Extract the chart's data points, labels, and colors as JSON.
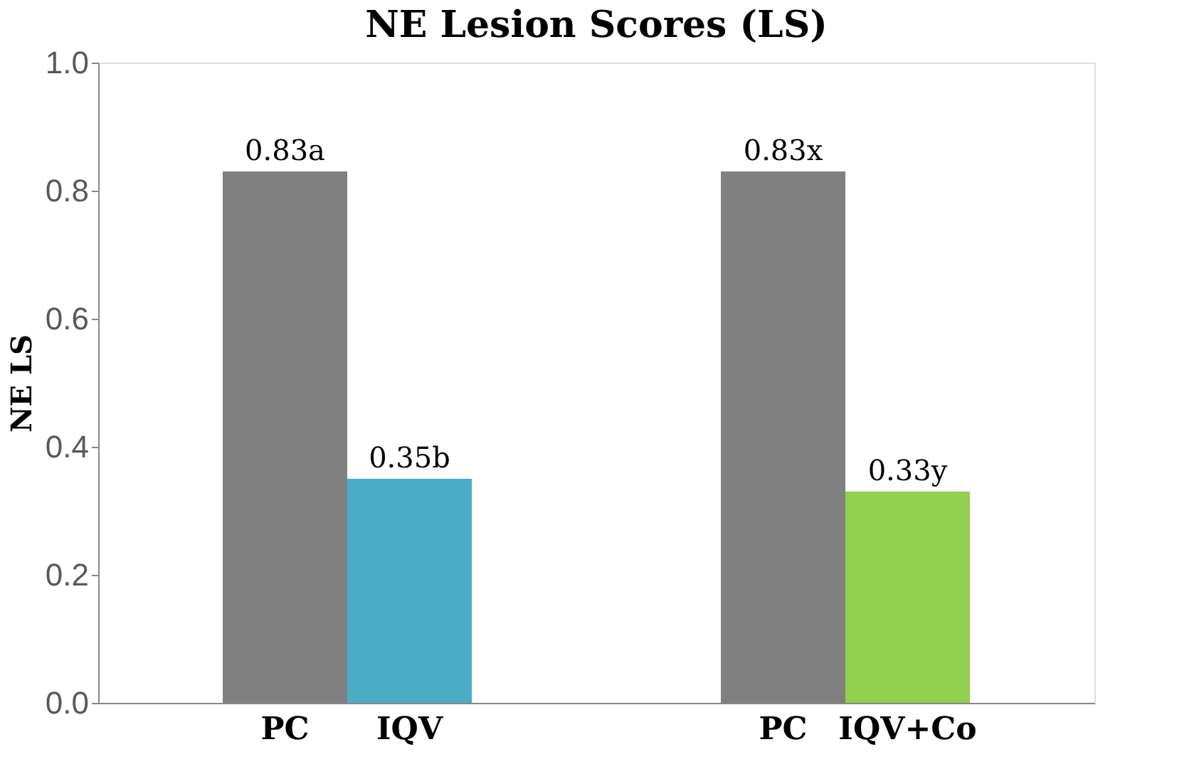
{
  "chart_data": {
    "type": "bar",
    "title": "NE Lesion Scores (LS)",
    "ylabel": "NE LS",
    "categories": [
      "PC",
      "IQV",
      "PC",
      "IQV+Co"
    ],
    "values": [
      0.83,
      0.35,
      0.83,
      0.33
    ],
    "colors": [
      "#808080",
      "#4bacc6",
      "#808080",
      "#92d050"
    ],
    "value_labels": [
      "0.83a",
      "0.35b",
      "0.83x",
      "0.33y"
    ],
    "ylim": [
      0,
      1.0
    ],
    "yticks": [
      {
        "value": 0,
        "label": "0.0"
      },
      {
        "value": 0.2,
        "label": "0.2"
      },
      {
        "value": 0.4,
        "label": "0.4"
      },
      {
        "value": 0.6,
        "label": "0.6"
      },
      {
        "value": 0.8,
        "label": "0.8"
      },
      {
        "value": 1.0,
        "label": "1.0"
      }
    ],
    "grid": false,
    "legend": false
  }
}
